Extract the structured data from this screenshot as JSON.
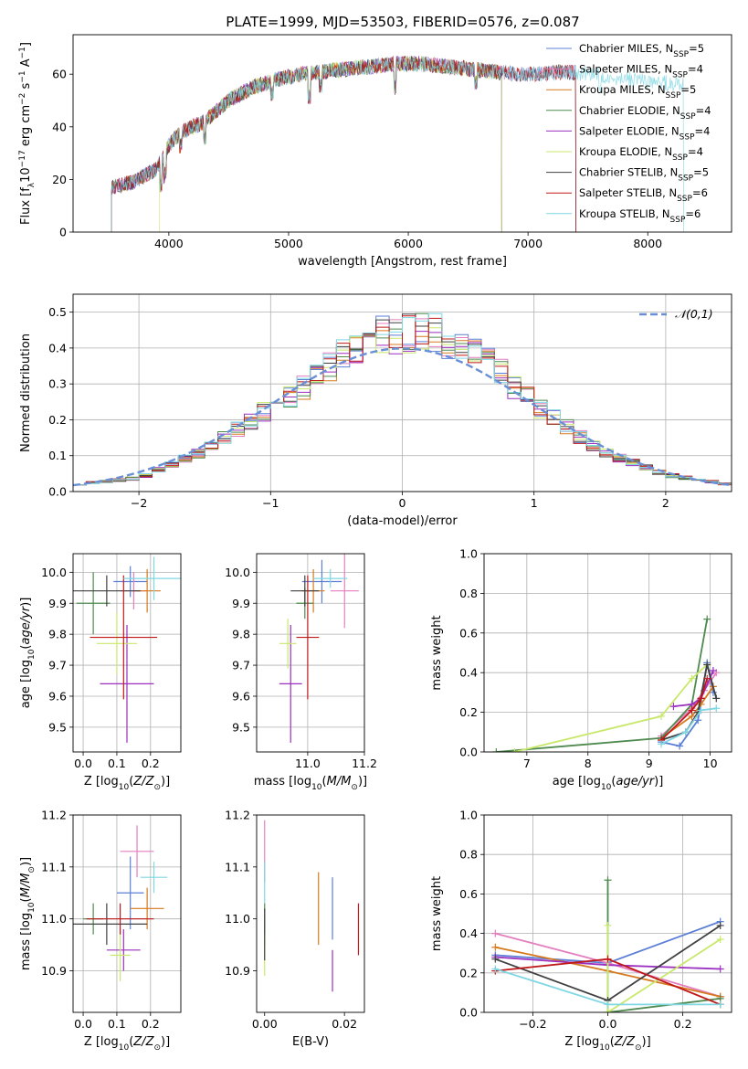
{
  "colors": {
    "chabrier_miles": "#5b7fd6",
    "salpeter_miles": "#e47fbf",
    "kroupa_miles": "#d67a1f",
    "chabrier_elodie": "#4f8a4f",
    "salpeter_elodie": "#9b2fbf",
    "kroupa_elodie": "#c8e86a",
    "chabrier_stelib": "#404040",
    "salpeter_stelib": "#c01818",
    "kroupa_stelib": "#7fd7e3",
    "normal_dashed": "#6a8fd6"
  },
  "chart_data": [
    {
      "id": "spectrum",
      "type": "line",
      "title": "PLATE=1999, MJD=53503, FIBERID=0576, z=0.087",
      "xlabel": "wavelength [Angstrom, rest frame]",
      "ylabel": "Flux [f_λ 10^-17 erg cm^-2 s^-1 A^-1]",
      "xlim": [
        3200,
        8700
      ],
      "ylim": [
        0,
        75
      ],
      "xticks": [
        4000,
        5000,
        6000,
        7000,
        8000
      ],
      "yticks": [
        0,
        20,
        40,
        60
      ],
      "grid": false,
      "legend_position": "upper right",
      "continuum": {
        "x": [
          3500,
          3700,
          3900,
          4000,
          4100,
          4300,
          4500,
          4700,
          4900,
          5100,
          5300,
          5500,
          5700,
          5900,
          6100,
          6300,
          6500,
          6700,
          6900,
          7100,
          7300,
          7500,
          7700,
          7900,
          8100,
          8300
        ],
        "y": [
          17,
          19,
          24,
          33,
          38,
          42,
          50,
          55,
          58,
          60,
          61,
          62,
          63,
          64,
          64,
          63,
          62,
          61,
          60,
          60,
          61,
          60,
          59,
          58,
          57,
          56
        ]
      },
      "series": [
        {
          "name": "Chabrier MILES",
          "nssp": "5",
          "color_key": "chabrier_miles"
        },
        {
          "name": "Salpeter MILES",
          "nssp": "4",
          "color_key": "salpeter_miles"
        },
        {
          "name": "Kroupa MILES",
          "nssp": "5",
          "color_key": "kroupa_miles"
        },
        {
          "name": "Chabrier ELODIE",
          "nssp": "4",
          "color_key": "chabrier_elodie"
        },
        {
          "name": "Salpeter ELODIE",
          "nssp": "4",
          "color_key": "salpeter_elodie"
        },
        {
          "name": "Kroupa ELODIE",
          "nssp": "4",
          "color_key": "kroupa_elodie"
        },
        {
          "name": "Chabrier STELIB",
          "nssp": "5",
          "color_key": "chabrier_stelib"
        },
        {
          "name": "Salpeter STELIB",
          "nssp": "6",
          "color_key": "salpeter_stelib"
        },
        {
          "name": "Kroupa STELIB",
          "nssp": "6",
          "color_key": "kroupa_stelib"
        }
      ]
    },
    {
      "id": "residuals",
      "type": "bar",
      "xlabel": "(data-model)/error",
      "ylabel": "Normed distribution",
      "xlim": [
        -2.5,
        2.5
      ],
      "ylim": [
        0,
        0.55
      ],
      "xticks": [
        -2,
        -1,
        0,
        1,
        2
      ],
      "yticks": [
        0.0,
        0.1,
        0.2,
        0.3,
        0.4,
        0.5
      ],
      "grid": true,
      "legend": "𝒩(0,1)",
      "legend_position": "upper right",
      "bin_width": 0.1,
      "envelope_x": [
        -2.5,
        -2.0,
        -1.5,
        -1.0,
        -0.75,
        -0.5,
        -0.25,
        0.0,
        0.25,
        0.5,
        0.75,
        1.0,
        1.5,
        2.0,
        2.5
      ],
      "envelope_y": [
        0.02,
        0.04,
        0.12,
        0.25,
        0.31,
        0.39,
        0.46,
        0.47,
        0.47,
        0.42,
        0.35,
        0.26,
        0.12,
        0.05,
        0.02
      ]
    },
    {
      "id": "age_vs_Z",
      "type": "scatter",
      "xlabel": "Z [log10(Z/Z⊙)]",
      "ylabel": "age [log10(age/yr)]",
      "xlim": [
        -0.03,
        0.29
      ],
      "ylim": [
        9.42,
        10.06
      ],
      "xticks": [
        0.0,
        0.1,
        0.2
      ],
      "yticks": [
        9.5,
        9.6,
        9.7,
        9.8,
        9.9,
        10.0
      ],
      "grid": true,
      "points": [
        {
          "key": "chabrier_miles",
          "x": 0.14,
          "xerr": 0.05,
          "y": 9.97,
          "yerr": 0.05
        },
        {
          "key": "salpeter_miles",
          "x": 0.15,
          "xerr": 0.04,
          "y": 9.94,
          "yerr": 0.06
        },
        {
          "key": "kroupa_miles",
          "x": 0.19,
          "xerr": 0.04,
          "y": 9.94,
          "yerr": 0.07
        },
        {
          "key": "chabrier_elodie",
          "x": 0.03,
          "xerr": 0.05,
          "y": 9.9,
          "yerr": 0.1
        },
        {
          "key": "salpeter_elodie",
          "x": 0.13,
          "xerr": 0.08,
          "y": 9.64,
          "yerr": 0.19
        },
        {
          "key": "kroupa_elodie",
          "x": 0.1,
          "xerr": 0.06,
          "y": 9.77,
          "yerr": 0.1
        },
        {
          "key": "chabrier_stelib",
          "x": 0.07,
          "xerr": 0.1,
          "y": 9.94,
          "yerr": 0.05
        },
        {
          "key": "salpeter_stelib",
          "x": 0.12,
          "xerr": 0.1,
          "y": 9.79,
          "yerr": 0.2
        },
        {
          "key": "kroupa_stelib",
          "x": 0.21,
          "xerr": 0.09,
          "y": 9.98,
          "yerr": 0.07
        }
      ]
    },
    {
      "id": "age_vs_mass",
      "type": "scatter",
      "xlabel": "mass [log10(M/M⊙)]",
      "ylabel": "",
      "xlim": [
        10.82,
        11.2
      ],
      "ylim": [
        9.42,
        10.06
      ],
      "xticks": [
        11.0,
        11.2
      ],
      "yticks": [
        9.5,
        9.6,
        9.7,
        9.8,
        9.9,
        10.0
      ],
      "grid": true,
      "points": [
        {
          "key": "chabrier_miles",
          "x": 11.05,
          "xerr": 0.07,
          "y": 9.97,
          "yerr": 0.07
        },
        {
          "key": "salpeter_miles",
          "x": 11.13,
          "xerr": 0.05,
          "y": 9.94,
          "yerr": 0.12
        },
        {
          "key": "kroupa_miles",
          "x": 11.02,
          "xerr": 0.04,
          "y": 9.94,
          "yerr": 0.07
        },
        {
          "key": "chabrier_elodie",
          "x": 10.99,
          "xerr": 0.03,
          "y": 9.9,
          "yerr": 0.05
        },
        {
          "key": "salpeter_elodie",
          "x": 10.94,
          "xerr": 0.04,
          "y": 9.64,
          "yerr": 0.19
        },
        {
          "key": "kroupa_elodie",
          "x": 10.93,
          "xerr": 0.03,
          "y": 9.77,
          "yerr": 0.08
        },
        {
          "key": "chabrier_stelib",
          "x": 10.99,
          "xerr": 0.05,
          "y": 9.94,
          "yerr": 0.05
        },
        {
          "key": "salpeter_stelib",
          "x": 11.0,
          "xerr": 0.04,
          "y": 9.79,
          "yerr": 0.2
        },
        {
          "key": "kroupa_stelib",
          "x": 11.08,
          "xerr": 0.06,
          "y": 9.98,
          "yerr": 0.03
        }
      ]
    },
    {
      "id": "weight_vs_age",
      "type": "line",
      "xlabel": "age [log10(age/yr)]",
      "ylabel": "mass weight",
      "xlim": [
        6.3,
        10.35
      ],
      "ylim": [
        0,
        1
      ],
      "xticks": [
        7,
        8,
        9,
        10
      ],
      "yticks": [
        0.0,
        0.2,
        0.4,
        0.6,
        0.8,
        1.0
      ],
      "grid": true,
      "series": [
        {
          "key": "chabrier_miles",
          "x": [
            9.2,
            9.5,
            9.8,
            9.95,
            10.05
          ],
          "y": [
            0.05,
            0.03,
            0.16,
            0.45,
            0.3
          ]
        },
        {
          "key": "salpeter_miles",
          "x": [
            9.2,
            9.7,
            9.9,
            10.1
          ],
          "y": [
            0.08,
            0.22,
            0.31,
            0.4
          ]
        },
        {
          "key": "kroupa_miles",
          "x": [
            9.2,
            9.7,
            9.85,
            10.05
          ],
          "y": [
            0.07,
            0.18,
            0.24,
            0.33
          ]
        },
        {
          "key": "chabrier_elodie",
          "x": [
            6.5,
            9.2,
            9.7,
            9.95
          ],
          "y": [
            0.0,
            0.07,
            0.24,
            0.67
          ]
        },
        {
          "key": "salpeter_elodie",
          "x": [
            9.4,
            9.7,
            9.85,
            10.05
          ],
          "y": [
            0.23,
            0.24,
            0.27,
            0.41
          ]
        },
        {
          "key": "kroupa_elodie",
          "x": [
            6.8,
            9.2,
            9.7,
            9.95
          ],
          "y": [
            0.0,
            0.18,
            0.37,
            0.44
          ]
        },
        {
          "key": "chabrier_stelib",
          "x": [
            9.2,
            9.6,
            9.8,
            9.95,
            10.1
          ],
          "y": [
            0.06,
            0.1,
            0.2,
            0.44,
            0.27
          ]
        },
        {
          "key": "salpeter_stelib",
          "x": [
            9.2,
            9.7,
            9.85,
            9.95
          ],
          "y": [
            0.06,
            0.21,
            0.27,
            0.37
          ]
        },
        {
          "key": "kroupa_stelib",
          "x": [
            9.2,
            9.6,
            9.85,
            10.1
          ],
          "y": [
            0.04,
            0.1,
            0.21,
            0.22
          ]
        }
      ]
    },
    {
      "id": "mass_vs_Z",
      "type": "scatter",
      "xlabel": "Z [log10(Z/Z⊙)]",
      "ylabel": "mass [log10(M/M⊙)]",
      "xlim": [
        -0.03,
        0.29
      ],
      "ylim": [
        10.82,
        11.2
      ],
      "xticks": [
        0.0,
        0.1,
        0.2
      ],
      "yticks": [
        10.9,
        11.0,
        11.1,
        11.2
      ],
      "grid": true,
      "points": [
        {
          "key": "chabrier_miles",
          "x": 0.14,
          "xerr": 0.04,
          "y": 11.05,
          "yerr": 0.07
        },
        {
          "key": "salpeter_miles",
          "x": 0.16,
          "xerr": 0.05,
          "y": 11.13,
          "yerr": 0.05
        },
        {
          "key": "kroupa_miles",
          "x": 0.19,
          "xerr": 0.05,
          "y": 11.02,
          "yerr": 0.04
        },
        {
          "key": "chabrier_elodie",
          "x": 0.03,
          "xerr": 0.03,
          "y": 11.0,
          "yerr": 0.03
        },
        {
          "key": "salpeter_elodie",
          "x": 0.12,
          "xerr": 0.05,
          "y": 10.94,
          "yerr": 0.04
        },
        {
          "key": "kroupa_elodie",
          "x": 0.11,
          "xerr": 0.03,
          "y": 10.93,
          "yerr": 0.05
        },
        {
          "key": "chabrier_stelib",
          "x": 0.07,
          "xerr": 0.12,
          "y": 10.99,
          "yerr": 0.04
        },
        {
          "key": "salpeter_stelib",
          "x": 0.11,
          "xerr": 0.1,
          "y": 11.0,
          "yerr": 0.03
        },
        {
          "key": "kroupa_stelib",
          "x": 0.21,
          "xerr": 0.04,
          "y": 11.08,
          "yerr": 0.03
        }
      ]
    },
    {
      "id": "mass_vs_EBV",
      "type": "scatter",
      "xlabel": "E(B-V)",
      "ylabel": "",
      "xlim": [
        -0.002,
        0.025
      ],
      "ylim": [
        10.82,
        11.2
      ],
      "xticks": [
        0.0,
        0.02
      ],
      "yticks": [
        10.9,
        11.0,
        11.1,
        11.2
      ],
      "grid": false,
      "points": [
        {
          "key": "chabrier_miles",
          "x": 0.017,
          "xerr": 0,
          "y": 11.02,
          "yerr": 0.06
        },
        {
          "key": "salpeter_miles",
          "x": 0.0,
          "xerr": 0,
          "y": 11.13,
          "yerr": 0.06
        },
        {
          "key": "kroupa_miles",
          "x": 0.0135,
          "xerr": 0,
          "y": 11.02,
          "yerr": 0.07
        },
        {
          "key": "chabrier_elodie",
          "x": 0.0,
          "xerr": 0,
          "y": 10.99,
          "yerr": 0.04
        },
        {
          "key": "salpeter_elodie",
          "x": 0.017,
          "xerr": 0,
          "y": 10.9,
          "yerr": 0.04
        },
        {
          "key": "kroupa_elodie",
          "x": 0.0,
          "xerr": 0,
          "y": 10.93,
          "yerr": 0.04
        },
        {
          "key": "chabrier_stelib",
          "x": 0.0,
          "xerr": 0,
          "y": 10.97,
          "yerr": 0.05
        },
        {
          "key": "salpeter_stelib",
          "x": 0.0235,
          "xerr": 0,
          "y": 10.98,
          "yerr": 0.05
        },
        {
          "key": "kroupa_stelib",
          "x": 0.0,
          "xerr": 0,
          "y": 11.07,
          "yerr": 0.04
        }
      ]
    },
    {
      "id": "weight_vs_Z",
      "type": "line",
      "xlabel": "Z [log10(Z/Z⊙)]",
      "ylabel": "mass weight",
      "xlim": [
        -0.33,
        0.33
      ],
      "ylim": [
        0,
        1
      ],
      "xticks": [
        -0.2,
        0.0,
        0.2
      ],
      "yticks": [
        0.0,
        0.2,
        0.4,
        0.6,
        0.8,
        1.0
      ],
      "grid": true,
      "series": [
        {
          "key": "chabrier_miles",
          "x": [
            -0.3,
            0.0,
            0.3
          ],
          "y": [
            0.29,
            0.25,
            0.46
          ]
        },
        {
          "key": "salpeter_miles",
          "x": [
            -0.3,
            0.0,
            0.3
          ],
          "y": [
            0.4,
            0.25,
            0.08
          ]
        },
        {
          "key": "kroupa_miles",
          "x": [
            -0.3,
            0.0,
            0.3
          ],
          "y": [
            0.33,
            0.21,
            0.08
          ]
        },
        {
          "key": "chabrier_elodie",
          "x": [
            0.0,
            0.0,
            0.3
          ],
          "y": [
            0.67,
            0.0,
            0.07
          ]
        },
        {
          "key": "salpeter_elodie",
          "x": [
            -0.3,
            0.0,
            0.3
          ],
          "y": [
            0.28,
            0.24,
            0.22
          ]
        },
        {
          "key": "kroupa_elodie",
          "x": [
            0.0,
            0.0,
            0.3
          ],
          "y": [
            0.44,
            0.0,
            0.37
          ]
        },
        {
          "key": "chabrier_stelib",
          "x": [
            -0.3,
            0.0,
            0.3
          ],
          "y": [
            0.27,
            0.06,
            0.44
          ]
        },
        {
          "key": "salpeter_stelib",
          "x": [
            -0.3,
            0.0,
            0.3
          ],
          "y": [
            0.21,
            0.27,
            0.04
          ]
        },
        {
          "key": "kroupa_stelib",
          "x": [
            -0.3,
            0.0,
            0.3
          ],
          "y": [
            0.22,
            0.04,
            0.04
          ]
        }
      ]
    }
  ]
}
